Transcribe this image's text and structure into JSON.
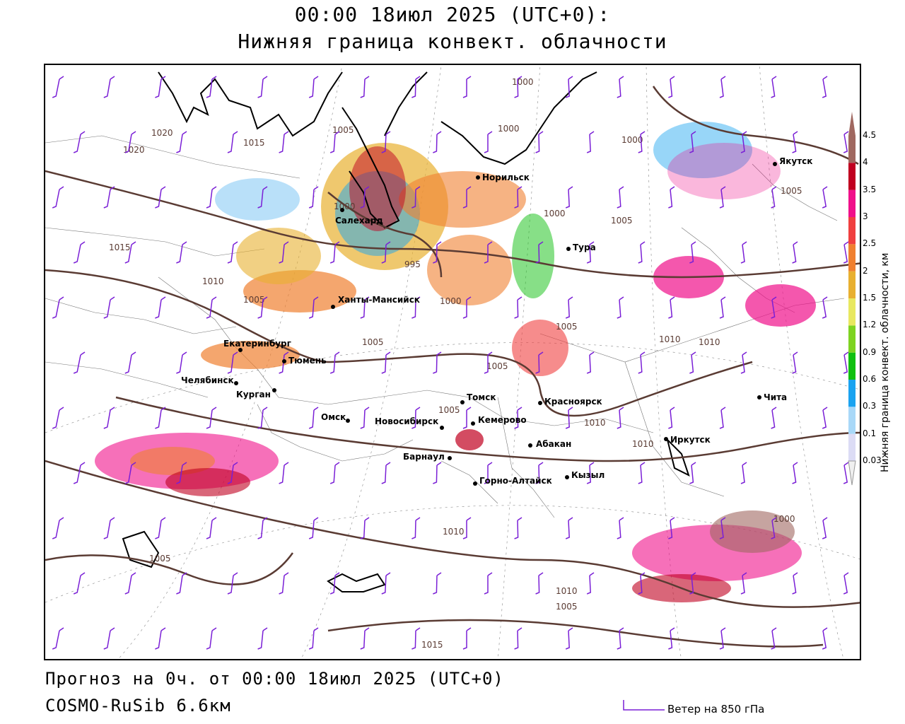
{
  "title": {
    "line1": "00:00 18июл 2025 (UTC+0):",
    "line2": "Нижняя граница конвект. облачности"
  },
  "footer": {
    "forecast": "Прогноз на 0ч. от 00:00 18июл 2025 (UTC+0)",
    "model": "COSMO-RuSib 6.6км"
  },
  "wind_legend": {
    "label": "Ветер на 850 гПа",
    "color": "#7a1fd6"
  },
  "colorbar": {
    "axis_label": "Нижняя граница конвект. облачности, км",
    "ticks": [
      "0.03",
      "0.1",
      "0.3",
      "0.6",
      "0.9",
      "1.2",
      "1.5",
      "2",
      "2.5",
      "3",
      "3.5",
      "4",
      "4.5"
    ],
    "colors": [
      "#dcdcf5",
      "#a8d8f8",
      "#1aa3f0",
      "#10c010",
      "#7ed321",
      "#e8e860",
      "#e8b030",
      "#f08030",
      "#f04040",
      "#f0108a",
      "#c00020",
      "#a06860"
    ]
  },
  "cities": [
    {
      "name": "Норильск"
    },
    {
      "name": "Салехард"
    },
    {
      "name": "Тура"
    },
    {
      "name": "Якутск"
    },
    {
      "name": "Ханты-Мансийск"
    },
    {
      "name": "Екатеринбург"
    },
    {
      "name": "Тюмень"
    },
    {
      "name": "Челябинск"
    },
    {
      "name": "Курган"
    },
    {
      "name": "Омск"
    },
    {
      "name": "Новосибирск"
    },
    {
      "name": "Томск"
    },
    {
      "name": "Кемерово"
    },
    {
      "name": "Красноярск"
    },
    {
      "name": "Абакан"
    },
    {
      "name": "Барнаул"
    },
    {
      "name": "Горно-Алтайск"
    },
    {
      "name": "Кызыл"
    },
    {
      "name": "Иркутск"
    },
    {
      "name": "Чита"
    }
  ],
  "isobar_labels": [
    "1000",
    "1000",
    "1000",
    "1005",
    "1015",
    "1020",
    "1020",
    "1015",
    "1010",
    "1005",
    "1000",
    "995",
    "1000",
    "1000",
    "1005",
    "1005",
    "1005",
    "1005",
    "1010",
    "1010",
    "1010",
    "1010",
    "1005",
    "1005",
    "1010",
    "1010",
    "1005",
    "1015",
    "1005",
    "1000"
  ]
}
